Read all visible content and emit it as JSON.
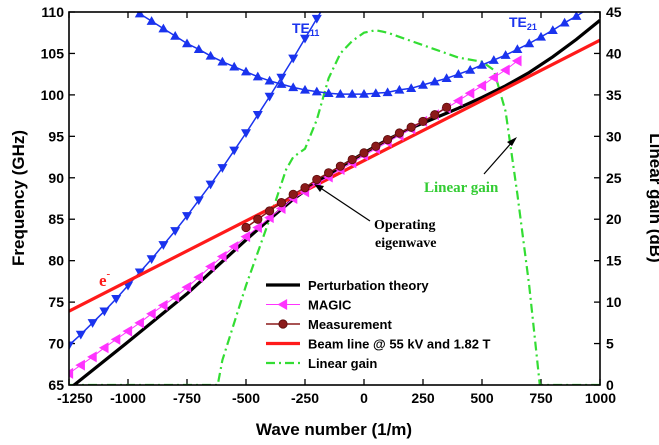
{
  "chart_data": {
    "type": "line",
    "xlabel": "Wave number (1/m)",
    "ylabel": "Frequency (GHz)",
    "y2label": "Linear gain (dB)",
    "xlim": [
      -1250,
      1000
    ],
    "ylim": [
      65,
      110
    ],
    "y2lim": [
      0,
      45
    ],
    "x_ticks": [
      -1250,
      -1000,
      -750,
      -500,
      -250,
      0,
      250,
      500,
      750,
      1000
    ],
    "y_ticks": [
      65,
      70,
      75,
      80,
      85,
      90,
      95,
      100,
      105,
      110
    ],
    "y2_ticks": [
      0,
      5,
      10,
      15,
      20,
      25,
      30,
      35,
      40,
      45
    ],
    "grid": false,
    "legend_position": "bottom-center",
    "series": [
      {
        "name": "Perturbation theory",
        "color": "#000000",
        "style": "solid",
        "axis": "left",
        "x": [
          -1250,
          -1000,
          -750,
          -500,
          -400,
          -300,
          -200,
          -100,
          0,
          100,
          200,
          300,
          400,
          500,
          600,
          700,
          800,
          900,
          1000
        ],
        "y": [
          64.5,
          70.2,
          76.0,
          82.5,
          85.0,
          87.4,
          89.5,
          91.3,
          93.0,
          94.6,
          96.0,
          97.2,
          98.4,
          99.7,
          101.1,
          102.7,
          104.6,
          106.7,
          109.0
        ]
      },
      {
        "name": "MAGIC",
        "color": "#ff33ff",
        "style": "markers-left-triangle",
        "axis": "left",
        "x": [
          -1250,
          -1200,
          -1150,
          -1100,
          -1050,
          -1000,
          -950,
          -900,
          -850,
          -800,
          -750,
          -700,
          -650,
          -600,
          -550,
          -500,
          -450,
          -400,
          -350,
          -300,
          -250,
          -200,
          -150,
          -100,
          -50,
          0,
          50,
          100,
          150,
          200,
          250,
          300,
          350,
          400,
          450,
          500,
          550,
          600,
          650
        ],
        "y": [
          66.4,
          67.4,
          68.4,
          69.5,
          70.5,
          71.5,
          72.5,
          73.6,
          74.6,
          75.6,
          76.8,
          78.0,
          79.3,
          80.5,
          81.7,
          82.9,
          84.0,
          85.2,
          86.3,
          87.5,
          88.3,
          89.3,
          90.1,
          91.0,
          91.8,
          92.7,
          93.5,
          94.3,
          95.1,
          95.9,
          96.8,
          97.6,
          98.4,
          99.3,
          100.2,
          101.1,
          102.1,
          103.0,
          104.1
        ]
      },
      {
        "name": "Measurement",
        "color": "#8b1a1a",
        "style": "line-circle-markers",
        "axis": "left",
        "x": [
          -500,
          -450,
          -400,
          -350,
          -300,
          -250,
          -200,
          -150,
          -100,
          -50,
          0,
          50,
          100,
          150,
          200,
          250,
          300,
          350
        ],
        "y": [
          84.0,
          85.0,
          86.0,
          87.0,
          88.0,
          88.8,
          89.8,
          90.6,
          91.4,
          92.2,
          93.0,
          93.8,
          94.6,
          95.4,
          96.1,
          96.8,
          97.6,
          98.5
        ]
      },
      {
        "name": "Beam line @ 55 kV and 1.82 T",
        "color": "#ff1a1a",
        "style": "solid",
        "axis": "left",
        "x": [
          -1250,
          1000
        ],
        "y": [
          73.9,
          106.6
        ]
      },
      {
        "name": "Linear gain",
        "color": "#33dd33",
        "style": "dash-dot",
        "axis": "right",
        "x": [
          -1250,
          -620,
          -600,
          -500,
          -400,
          -330,
          -300,
          -250,
          -200,
          -150,
          -100,
          -50,
          0,
          50,
          100,
          200,
          300,
          400,
          500,
          550,
          600,
          650,
          700,
          730,
          745,
          1000
        ],
        "y": [
          0,
          0,
          3,
          12,
          20,
          26,
          27.5,
          28.5,
          32,
          37,
          40,
          41.5,
          42.5,
          42.8,
          42.5,
          41.5,
          40.5,
          39.5,
          39,
          38,
          33,
          23,
          12,
          4,
          0,
          0
        ]
      },
      {
        "name": "TE11",
        "color": "#1a33ee",
        "style": "line-down-triangle-markers",
        "axis": "left",
        "x": [
          -1250,
          -1200,
          -1150,
          -1100,
          -1050,
          -1000,
          -950,
          -900,
          -850,
          -800,
          -750,
          -700,
          -650,
          -600,
          -550,
          -500,
          -450,
          -400,
          -350,
          -300,
          -250,
          -200,
          -150,
          -100
        ],
        "y": [
          69.8,
          71.1,
          72.5,
          73.9,
          75.4,
          77.0,
          78.6,
          80.2,
          81.9,
          83.6,
          85.4,
          87.3,
          89.2,
          91.2,
          93.3,
          95.4,
          97.6,
          99.8,
          102.1,
          104.4,
          106.8,
          109.2,
          111.6,
          114.1
        ]
      },
      {
        "name": "TE21",
        "color": "#1a33ee",
        "style": "line-up-triangle-markers",
        "axis": "left",
        "x": [
          -1000,
          -950,
          -900,
          -850,
          -800,
          -750,
          -700,
          -650,
          -600,
          -550,
          -500,
          -450,
          -400,
          -350,
          -300,
          -250,
          -200,
          -150,
          -100,
          -50,
          0,
          50,
          100,
          150,
          200,
          250,
          300,
          350,
          400,
          450,
          500,
          550,
          600,
          650,
          700,
          750,
          800,
          850,
          900,
          950,
          1000
        ],
        "y": [
          110.8,
          109.8,
          108.9,
          108.0,
          107.1,
          106.2,
          105.5,
          104.7,
          104.0,
          103.4,
          102.8,
          102.2,
          101.7,
          101.3,
          100.9,
          100.6,
          100.4,
          100.2,
          100.1,
          100.1,
          100.1,
          100.2,
          100.3,
          100.6,
          100.8,
          101.2,
          101.6,
          102.0,
          102.5,
          103.0,
          103.6,
          104.2,
          104.8,
          105.5,
          106.2,
          107.0,
          107.8,
          108.7,
          109.5,
          110.4,
          111.4
        ]
      }
    ],
    "annotations": {
      "te11": "TE",
      "te11_sub": "11",
      "te21": "TE",
      "te21_sub": "21",
      "linear_gain": "Linear gain",
      "operating_1": "Operating",
      "operating_2": "eigenwave",
      "electron": "e",
      "electron_sup": "-"
    }
  }
}
